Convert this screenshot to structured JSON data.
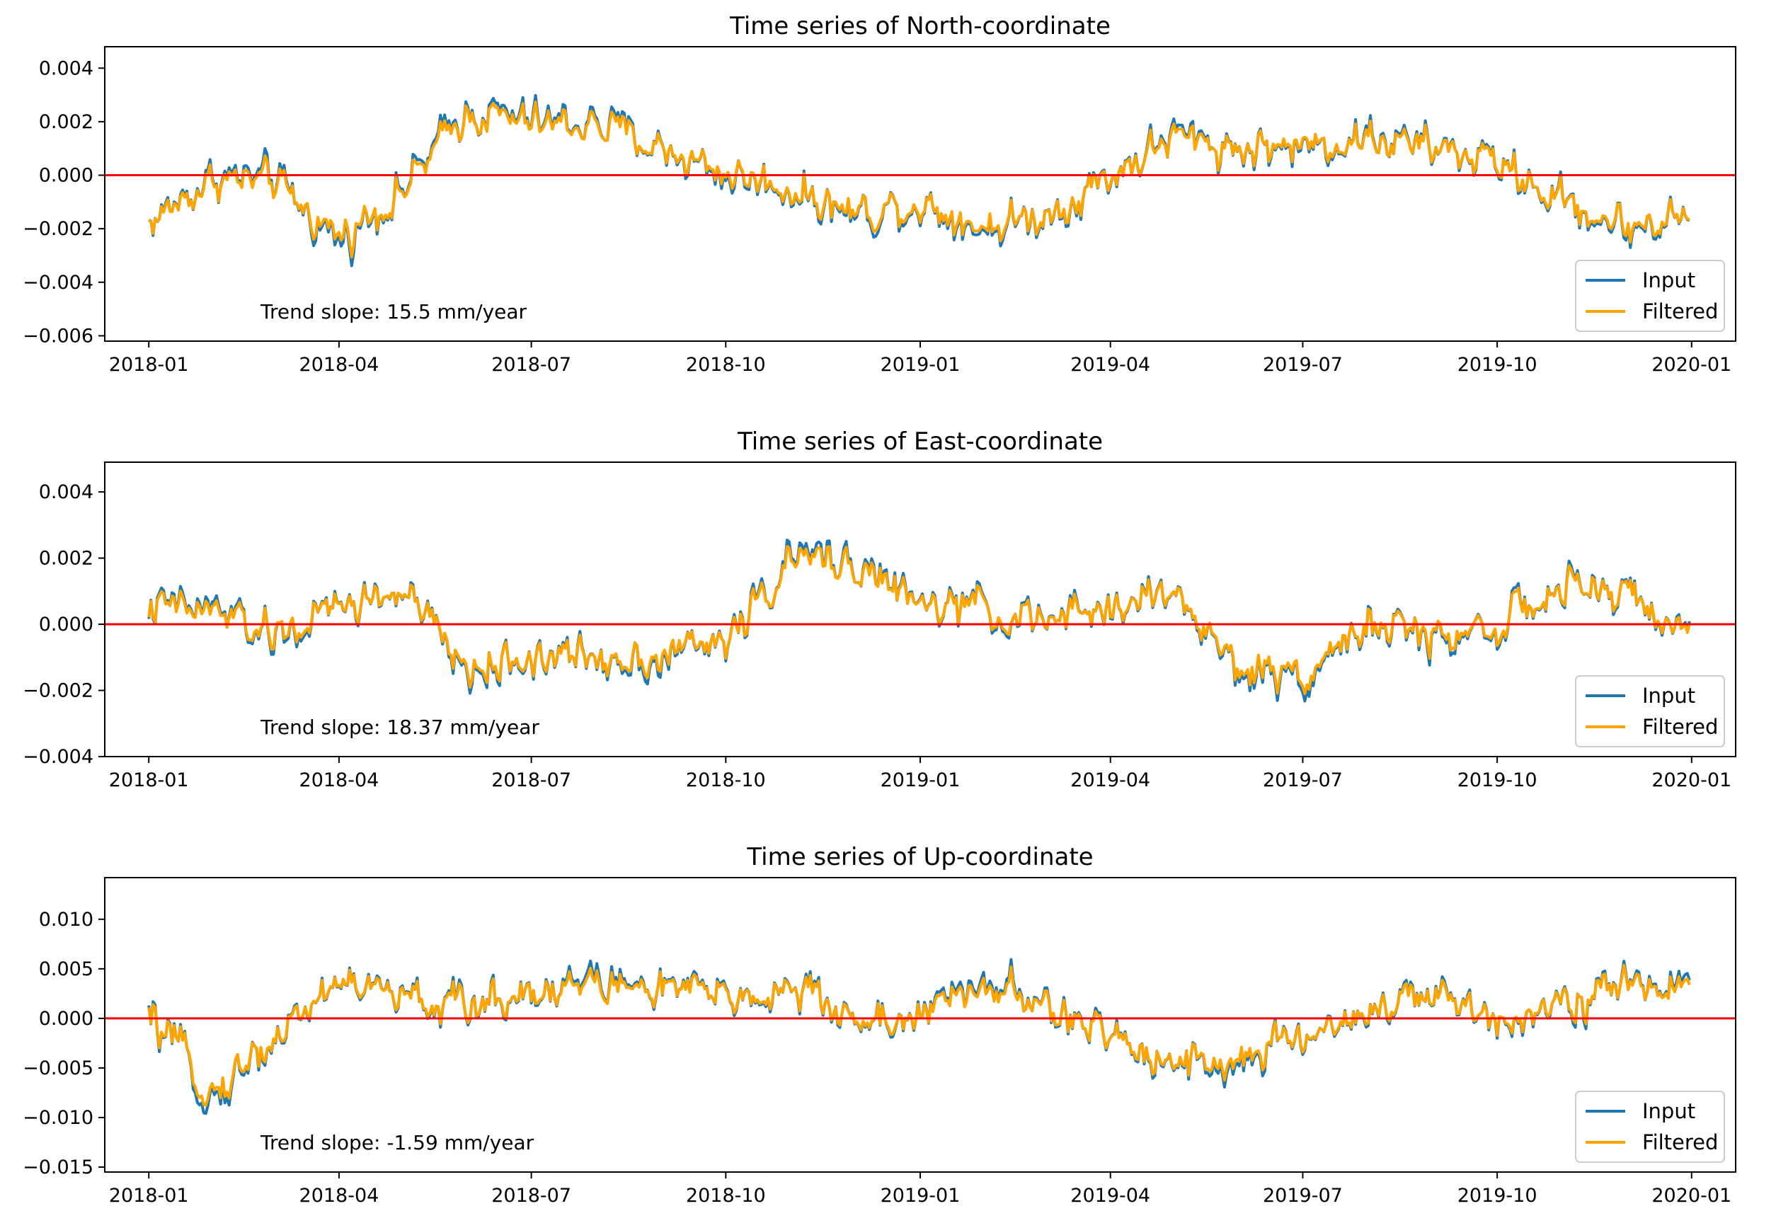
{
  "colors": {
    "input": "#1f77b4",
    "filtered": "#ffa500",
    "zero_line": "#ff0000"
  },
  "legend": {
    "placement": "lower right",
    "entries": [
      "Input",
      "Filtered"
    ]
  },
  "chart_data": [
    {
      "type": "line",
      "title": "Time series of North-coordinate",
      "annotation": "Trend slope: 15.5 mm/year",
      "x_range": [
        "2018-01-01",
        "2020-01-01"
      ],
      "xticks": [
        "2018-01",
        "2018-04",
        "2018-07",
        "2018-10",
        "2019-01",
        "2019-04",
        "2019-07",
        "2019-10",
        "2020-01"
      ],
      "ylim": [
        -0.0062,
        0.0048
      ],
      "yticks": [
        0.004,
        0.002,
        0.0,
        -0.002,
        -0.004,
        -0.006
      ],
      "ytick_labels": [
        "0.004",
        "0.002",
        "0.000",
        "−0.002",
        "−0.004",
        "−0.006"
      ],
      "reference_line": 0.0,
      "grid": false,
      "series": [
        {
          "name": "Input",
          "x": [
            "2018-01-01",
            "2018-02-01",
            "2018-03-01",
            "2018-04-01",
            "2018-05-01",
            "2018-06-01",
            "2018-07-01",
            "2018-08-01",
            "2018-09-01",
            "2018-10-01",
            "2018-11-01",
            "2018-12-01",
            "2019-01-01",
            "2019-02-01",
            "2019-03-01",
            "2019-04-01",
            "2019-05-01",
            "2019-06-01",
            "2019-07-01",
            "2019-08-01",
            "2019-09-01",
            "2019-10-01",
            "2019-11-01",
            "2019-12-01",
            "2019-12-31"
          ],
          "values": [
            -0.0018,
            0.0,
            -0.0002,
            -0.0025,
            -0.0005,
            0.0025,
            0.002,
            0.002,
            0.001,
            0.0,
            -0.0005,
            -0.0015,
            -0.001,
            -0.002,
            -0.0015,
            0.0,
            0.0015,
            0.001,
            0.001,
            0.0015,
            0.001,
            0.0005,
            -0.001,
            -0.002,
            -0.0015
          ]
        },
        {
          "name": "Filtered",
          "x": [
            "2018-01-01",
            "2018-02-01",
            "2018-03-01",
            "2018-04-01",
            "2018-05-01",
            "2018-06-01",
            "2018-07-01",
            "2018-08-01",
            "2018-09-01",
            "2018-10-01",
            "2018-11-01",
            "2018-12-01",
            "2019-01-01",
            "2019-02-01",
            "2019-03-01",
            "2019-04-01",
            "2019-05-01",
            "2019-06-01",
            "2019-07-01",
            "2019-08-01",
            "2019-09-01",
            "2019-10-01",
            "2019-11-01",
            "2019-12-01",
            "2019-12-31"
          ],
          "values": [
            -0.0018,
            -0.0001,
            -0.0003,
            -0.0023,
            -0.0006,
            0.0024,
            0.0019,
            0.0019,
            0.001,
            0.0001,
            -0.0005,
            -0.0014,
            -0.001,
            -0.0019,
            -0.0015,
            0.0,
            0.0014,
            0.001,
            0.0011,
            0.0014,
            0.001,
            0.0005,
            -0.001,
            -0.0019,
            -0.0015
          ]
        }
      ]
    },
    {
      "type": "line",
      "title": "Time series of East-coordinate",
      "annotation": "Trend slope: 18.37 mm/year",
      "x_range": [
        "2018-01-01",
        "2020-01-01"
      ],
      "xticks": [
        "2018-01",
        "2018-04",
        "2018-07",
        "2018-10",
        "2019-01",
        "2019-04",
        "2019-07",
        "2019-10",
        "2020-01"
      ],
      "ylim": [
        -0.004,
        0.0049
      ],
      "yticks": [
        0.004,
        0.002,
        0.0,
        -0.002,
        -0.004
      ],
      "ytick_labels": [
        "0.004",
        "0.002",
        "0.000",
        "−0.002",
        "−0.004"
      ],
      "reference_line": 0.0,
      "grid": false,
      "series": [
        {
          "name": "Input",
          "x": [
            "2018-01-01",
            "2018-02-01",
            "2018-03-01",
            "2018-04-01",
            "2018-05-01",
            "2018-06-01",
            "2018-07-01",
            "2018-08-01",
            "2018-09-01",
            "2018-10-01",
            "2018-11-01",
            "2018-12-01",
            "2019-01-01",
            "2019-02-01",
            "2019-03-01",
            "2019-04-01",
            "2019-05-01",
            "2019-06-01",
            "2019-07-01",
            "2019-08-01",
            "2019-09-01",
            "2019-10-01",
            "2019-11-01",
            "2019-12-01",
            "2019-12-31"
          ],
          "values": [
            0.0005,
            0.0005,
            -0.0005,
            0.0005,
            0.001,
            -0.0015,
            -0.001,
            -0.001,
            -0.001,
            -0.0005,
            0.002,
            0.002,
            0.0005,
            0.0005,
            0.0,
            0.0005,
            0.001,
            -0.0015,
            -0.0015,
            0.0,
            -0.0005,
            0.0,
            0.001,
            0.001,
            -0.0005
          ]
        },
        {
          "name": "Filtered",
          "x": [
            "2018-01-01",
            "2018-02-01",
            "2018-03-01",
            "2018-04-01",
            "2018-05-01",
            "2018-06-01",
            "2018-07-01",
            "2018-08-01",
            "2018-09-01",
            "2018-10-01",
            "2018-11-01",
            "2018-12-01",
            "2019-01-01",
            "2019-02-01",
            "2019-03-01",
            "2019-04-01",
            "2019-05-01",
            "2019-06-01",
            "2019-07-01",
            "2019-08-01",
            "2019-09-01",
            "2019-10-01",
            "2019-11-01",
            "2019-12-01",
            "2019-12-31"
          ],
          "values": [
            0.0005,
            0.0004,
            -0.0004,
            0.0005,
            0.001,
            -0.0014,
            -0.001,
            -0.001,
            -0.0009,
            -0.0005,
            0.0019,
            0.0019,
            0.0005,
            0.0005,
            0.0,
            0.0005,
            0.001,
            -0.0014,
            -0.0014,
            0.0,
            -0.0004,
            0.0,
            0.001,
            0.001,
            -0.0005
          ]
        }
      ]
    },
    {
      "type": "line",
      "title": "Time series of Up-coordinate",
      "annotation": "Trend slope: -1.59 mm/year",
      "x_range": [
        "2018-01-01",
        "2020-01-01"
      ],
      "xticks": [
        "2018-01",
        "2018-04",
        "2018-07",
        "2018-10",
        "2019-01",
        "2019-04",
        "2019-07",
        "2019-10",
        "2020-01"
      ],
      "ylim": [
        -0.0155,
        0.0142
      ],
      "yticks": [
        0.01,
        0.005,
        0.0,
        -0.005,
        -0.01,
        -0.015
      ],
      "ytick_labels": [
        "0.010",
        "0.005",
        "0.000",
        "−0.005",
        "−0.010",
        "−0.015"
      ],
      "reference_line": 0.0,
      "grid": false,
      "series": [
        {
          "name": "Input",
          "x": [
            "2018-01-01",
            "2018-02-01",
            "2018-03-01",
            "2018-04-01",
            "2018-05-01",
            "2018-06-01",
            "2018-07-01",
            "2018-08-01",
            "2018-09-01",
            "2018-10-01",
            "2018-11-01",
            "2018-12-01",
            "2019-01-01",
            "2019-02-01",
            "2019-03-01",
            "2019-04-01",
            "2019-05-01",
            "2019-06-01",
            "2019-07-01",
            "2019-08-01",
            "2019-09-01",
            "2019-10-01",
            "2019-11-01",
            "2019-12-01",
            "2019-12-31"
          ],
          "values": [
            0.0,
            -0.008,
            -0.002,
            0.004,
            0.002,
            0.001,
            0.003,
            0.004,
            0.003,
            0.002,
            0.003,
            0.0,
            0.0,
            0.004,
            0.001,
            -0.002,
            -0.004,
            -0.005,
            -0.002,
            0.001,
            0.002,
            0.0,
            0.002,
            0.003,
            0.004
          ]
        },
        {
          "name": "Filtered",
          "x": [
            "2018-01-01",
            "2018-02-01",
            "2018-03-01",
            "2018-04-01",
            "2018-05-01",
            "2018-06-01",
            "2018-07-01",
            "2018-08-01",
            "2018-09-01",
            "2018-10-01",
            "2018-11-01",
            "2018-12-01",
            "2019-01-01",
            "2019-02-01",
            "2019-03-01",
            "2019-04-01",
            "2019-05-01",
            "2019-06-01",
            "2019-07-01",
            "2019-08-01",
            "2019-09-01",
            "2019-10-01",
            "2019-11-01",
            "2019-12-01",
            "2019-12-31"
          ],
          "values": [
            0.0,
            -0.0075,
            -0.002,
            0.004,
            0.002,
            0.001,
            0.003,
            0.0035,
            0.003,
            0.002,
            0.003,
            0.0,
            0.0,
            0.0035,
            0.001,
            -0.002,
            -0.004,
            -0.0045,
            -0.002,
            0.001,
            0.002,
            0.0,
            0.002,
            0.003,
            0.0035
          ]
        }
      ]
    }
  ]
}
